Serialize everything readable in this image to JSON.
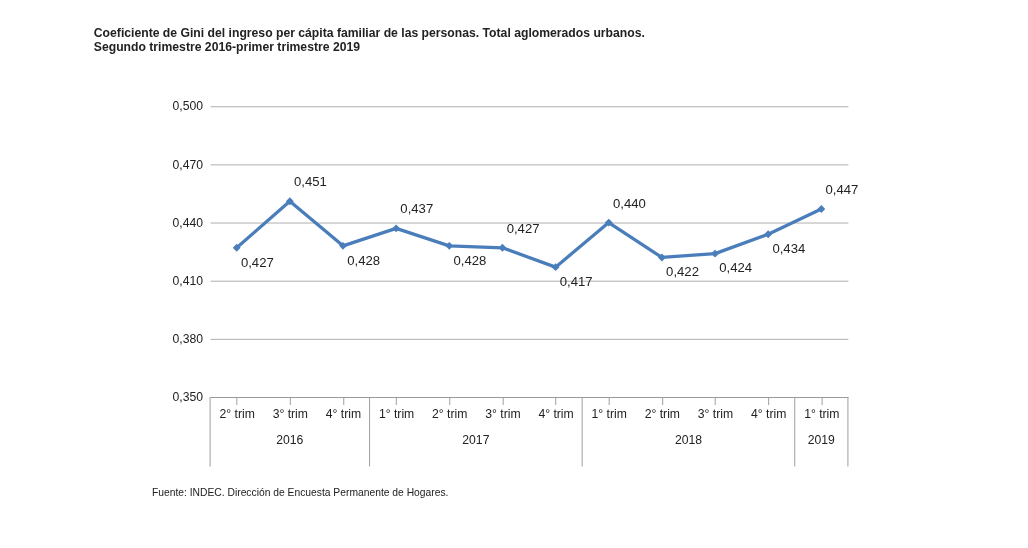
{
  "chart_data": {
    "type": "line",
    "title": [
      "Coeficiente de Gini del ingreso per cápita familiar de las personas. Total aglomerados urbanos.",
      "Segundo trimestre 2016-primer trimestre 2019"
    ],
    "categories": [
      "2° trim",
      "3° trim",
      "4° trim",
      "1° trim",
      "2° trim",
      "3° trim",
      "4° trim",
      "1° trim",
      "2° trim",
      "3° trim",
      "4° trim",
      "1° trim"
    ],
    "series": [
      {
        "color": "#4a7ebb",
        "values": [
          0.427,
          0.451,
          0.428,
          0.437,
          0.428,
          0.427,
          0.417,
          0.44,
          0.422,
          0.424,
          0.434,
          0.447
        ],
        "value_labels": [
          "0,427",
          "0,451",
          "0,428",
          "0,437",
          "0,428",
          "0,427",
          "0,417",
          "0,440",
          "0,422",
          "0,424",
          "0,434",
          "0,447"
        ]
      }
    ],
    "ylim": [
      0.35,
      0.5
    ],
    "yticks": [
      {
        "value": 0.35,
        "label": "0,350"
      },
      {
        "value": 0.38,
        "label": "0,380"
      },
      {
        "value": 0.41,
        "label": "0,410"
      },
      {
        "value": 0.44,
        "label": "0,440"
      },
      {
        "value": 0.47,
        "label": "0,470"
      },
      {
        "value": 0.5,
        "label": "0,500"
      }
    ],
    "grid": "y",
    "marker": "diamond",
    "line_style": "solid",
    "annotations": [
      "2016",
      "2017",
      "2018",
      "2019",
      "Fuente: INDEC. Dirección de Encuesta Permanente de Hogares."
    ]
  }
}
